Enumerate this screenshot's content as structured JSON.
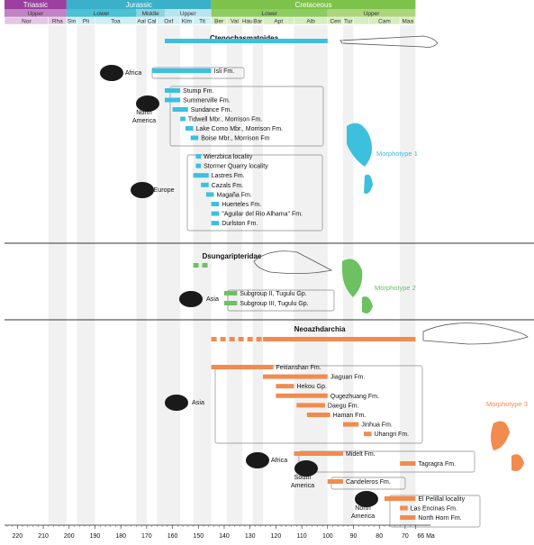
{
  "chart_data": {
    "type": "timeline",
    "x_unit": "Ma",
    "x_range": [
      225,
      63
    ],
    "axis_ticks": [
      "220",
      "210",
      "200",
      "190",
      "180",
      "170",
      "160",
      "150",
      "140",
      "130",
      "120",
      "110",
      "100",
      "90",
      "80",
      "70",
      "66 Ma"
    ],
    "periods": [
      {
        "name": "Triassic",
        "start": 225,
        "end": 201,
        "color": "#9b3fa0"
      },
      {
        "name": "Jurassic",
        "start": 201,
        "end": 145,
        "color": "#3ab1c8"
      },
      {
        "name": "Cretaceous",
        "start": 145,
        "end": 66,
        "color": "#7dc24a"
      }
    ],
    "epochs": [
      {
        "name": "Upper",
        "start": 225,
        "end": 201,
        "color": "#c183c4"
      },
      {
        "name": "Lower",
        "start": 201,
        "end": 174,
        "color": "#4cc0d5"
      },
      {
        "name": "Middle",
        "start": 174,
        "end": 163,
        "color": "#8fd3e1"
      },
      {
        "name": "Upper",
        "start": 163,
        "end": 145,
        "color": "#b9e4ef"
      },
      {
        "name": "Lower",
        "start": 145,
        "end": 100,
        "color": "#8dcc60"
      },
      {
        "name": "Upper",
        "start": 100,
        "end": 66,
        "color": "#aed57c"
      }
    ],
    "stages": [
      {
        "name": "Nor",
        "start": 225,
        "end": 208
      },
      {
        "name": "Rha",
        "start": 208,
        "end": 201
      },
      {
        "name": "Sin",
        "start": 201,
        "end": 197
      },
      {
        "name": "Pli",
        "start": 197,
        "end": 190
      },
      {
        "name": "Toa",
        "start": 190,
        "end": 174
      },
      {
        "name": "Aal",
        "start": 174,
        "end": 170
      },
      {
        "name": "Cal",
        "start": 170,
        "end": 166
      },
      {
        "name": "Oxf",
        "start": 166,
        "end": 157
      },
      {
        "name": "Kim",
        "start": 157,
        "end": 152
      },
      {
        "name": "Tit",
        "start": 152,
        "end": 145
      },
      {
        "name": "Ber",
        "start": 145,
        "end": 139
      },
      {
        "name": "Val",
        "start": 139,
        "end": 133
      },
      {
        "name": "Hau",
        "start": 133,
        "end": 129
      },
      {
        "name": "Bar",
        "start": 129,
        "end": 125
      },
      {
        "name": "Apt",
        "start": 125,
        "end": 113
      },
      {
        "name": "Alb",
        "start": 113,
        "end": 100
      },
      {
        "name": "Cen",
        "start": 100,
        "end": 94
      },
      {
        "name": "Tur",
        "start": 94,
        "end": 90
      },
      {
        "name": "Cam",
        "start": 84,
        "end": 72
      },
      {
        "name": "Maa",
        "start": 72,
        "end": 66
      }
    ],
    "clades": [
      {
        "name": "Ctenochasmatoidea",
        "color": "#3cc0de",
        "range": [
          163,
          100
        ],
        "morphotype": "Morphotype 1",
        "regions": [
          {
            "name": "Africa",
            "formations": [
              {
                "name": "Isli Fm.",
                "start": 168,
                "end": 145
              }
            ]
          },
          {
            "name": "North\nAmerica",
            "formations": [
              {
                "name": "Stump Fm.",
                "start": 163,
                "end": 157
              },
              {
                "name": "Summerville Fm.",
                "start": 163,
                "end": 157
              },
              {
                "name": "Sundance Fm.",
                "start": 160,
                "end": 154
              },
              {
                "name": "Tidwell Mbr., Morrison Fm.",
                "start": 157,
                "end": 155
              },
              {
                "name": "Lake Como Mbr., Morrison Fm.",
                "start": 155,
                "end": 152
              },
              {
                "name": "Boise Mbr., Morrison Fm",
                "start": 153,
                "end": 150
              }
            ]
          },
          {
            "name": "Europe",
            "formations": [
              {
                "name": "Wierzbica locality",
                "start": 151,
                "end": 149
              },
              {
                "name": "Stormer Quarry locality",
                "start": 151,
                "end": 149
              },
              {
                "name": "Lastres Fm.",
                "start": 152,
                "end": 146
              },
              {
                "name": "Cazals Fm.",
                "start": 149,
                "end": 146
              },
              {
                "name": "Magaña Fm.",
                "start": 147,
                "end": 144
              },
              {
                "name": "Huerteles Fm.",
                "start": 145,
                "end": 142
              },
              {
                "name": "\"Aguilar del Rio Alhama\" Fm.",
                "start": 145,
                "end": 142
              },
              {
                "name": "Durlston Fm.",
                "start": 145,
                "end": 142
              }
            ]
          }
        ]
      },
      {
        "name": "Dsungaripteridae",
        "color": "#6cc160",
        "range": [
          152,
          134
        ],
        "morphotype": "Morphotype 2",
        "regions": [
          {
            "name": "Asia",
            "formations": [
              {
                "name": "Subgroup II, Tugulu Gp.",
                "start": 140,
                "end": 135
              },
              {
                "name": "Subgroup III, Tugulu Gp.",
                "start": 140,
                "end": 135
              }
            ]
          }
        ]
      },
      {
        "name": "Neoazhdarchia",
        "color": "#f28b4e",
        "range": [
          145,
          66
        ],
        "morphotype": "Morphotype 3",
        "regions": [
          {
            "name": "Asia",
            "formations": [
              {
                "name": "Feitianshan Fm.",
                "start": 145,
                "end": 121
              },
              {
                "name": "Jiaguan Fm.",
                "start": 125,
                "end": 100
              },
              {
                "name": "Hekou Gp.",
                "start": 120,
                "end": 113
              },
              {
                "name": "Qugezhuang Fm.",
                "start": 120,
                "end": 100
              },
              {
                "name": "Daegu Fm.",
                "start": 112,
                "end": 101
              },
              {
                "name": "Haman Fm.",
                "start": 108,
                "end": 99
              },
              {
                "name": "Jinhua Fm.",
                "start": 94,
                "end": 88
              },
              {
                "name": "Uhangri Fm.",
                "start": 86,
                "end": 83
              }
            ]
          },
          {
            "name": "Africa",
            "formations": [
              {
                "name": "Midelt Fm.",
                "start": 113,
                "end": 94
              },
              {
                "name": "Tagragra Fm.",
                "start": 72,
                "end": 66
              }
            ]
          },
          {
            "name": "South\nAmerica",
            "formations": [
              {
                "name": "Candeleros Fm.",
                "start": 100,
                "end": 94
              }
            ]
          },
          {
            "name": "North\nAmerica",
            "formations": [
              {
                "name": "El Pelillal locality",
                "start": 78,
                "end": 66
              },
              {
                "name": "Las Encinas Fm.",
                "start": 72,
                "end": 69
              },
              {
                "name": "North Horn Fm.",
                "start": 72,
                "end": 66
              }
            ]
          }
        ]
      }
    ]
  }
}
